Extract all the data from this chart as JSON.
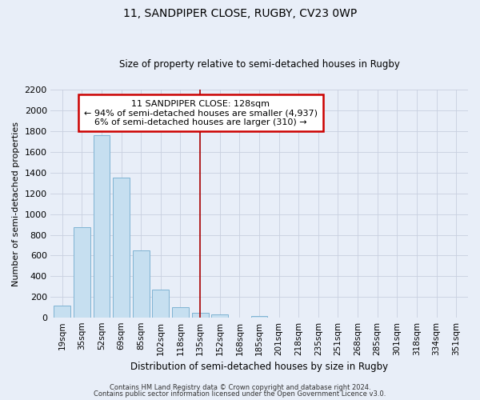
{
  "title": "11, SANDPIPER CLOSE, RUGBY, CV23 0WP",
  "subtitle": "Size of property relative to semi-detached houses in Rugby",
  "xlabel": "Distribution of semi-detached houses by size in Rugby",
  "ylabel": "Number of semi-detached properties",
  "bar_labels": [
    "19sqm",
    "35sqm",
    "52sqm",
    "69sqm",
    "85sqm",
    "102sqm",
    "118sqm",
    "135sqm",
    "152sqm",
    "168sqm",
    "185sqm",
    "201sqm",
    "218sqm",
    "235sqm",
    "251sqm",
    "268sqm",
    "285sqm",
    "301sqm",
    "318sqm",
    "334sqm",
    "351sqm"
  ],
  "bar_values": [
    120,
    870,
    1760,
    1350,
    650,
    270,
    100,
    50,
    30,
    0,
    20,
    0,
    0,
    0,
    0,
    0,
    0,
    0,
    0,
    0,
    0
  ],
  "bar_color": "#c6dff0",
  "bar_edgecolor": "#7fb3d3",
  "property_line_x": 7.0,
  "property_line_color": "#aa0000",
  "annotation_title": "11 SANDPIPER CLOSE: 128sqm",
  "annotation_line1": "← 94% of semi-detached houses are smaller (4,937)",
  "annotation_line2": "6% of semi-detached houses are larger (310) →",
  "ylim": [
    0,
    2200
  ],
  "yticks": [
    0,
    200,
    400,
    600,
    800,
    1000,
    1200,
    1400,
    1600,
    1800,
    2000,
    2200
  ],
  "footer1": "Contains HM Land Registry data © Crown copyright and database right 2024.",
  "footer2": "Contains public sector information licensed under the Open Government Licence v3.0.",
  "bg_color": "#e8eef8",
  "plot_bg_color": "#e8eef8",
  "grid_color": "#c8d0e0"
}
